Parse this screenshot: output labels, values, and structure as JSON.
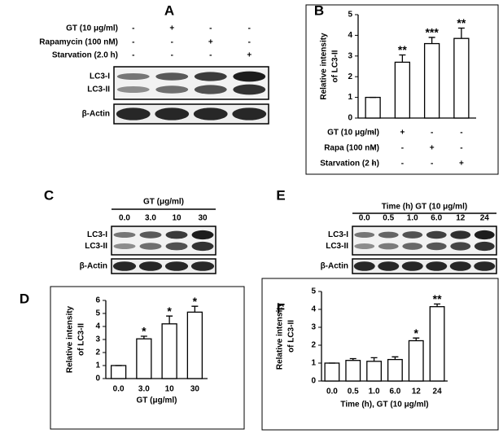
{
  "panels": {
    "A": {
      "letter": "A",
      "conditions": [
        {
          "label": "GT (10 μg/ml)",
          "signs": [
            "-",
            "+",
            "-",
            "-"
          ]
        },
        {
          "label": "Rapamycin (100 nM)",
          "signs": [
            "-",
            "-",
            "+",
            "-"
          ]
        },
        {
          "label": "Starvation (2.0 h)",
          "signs": [
            "-",
            "-",
            "-",
            "+"
          ]
        }
      ],
      "bands": [
        "LC3-I",
        "LC3-II"
      ],
      "loading": "β-Actin"
    },
    "C": {
      "letter": "C",
      "header": "GT (μg/ml)",
      "lanes": [
        "0.0",
        "3.0",
        "10",
        "30"
      ],
      "bands": [
        "LC3-I",
        "LC3-II"
      ],
      "loading": "β-Actin"
    },
    "E": {
      "letter": "E",
      "header": "Time (h) GT (10 μg/ml)",
      "lanes": [
        "0.0",
        "0.5",
        "1.0",
        "6.0",
        "12",
        "24"
      ],
      "bands": [
        "LC3-I",
        "LC3-II"
      ],
      "loading": "β-Actin"
    }
  },
  "chart_data": [
    {
      "type": "bar",
      "panel_letter": "B",
      "ylabel": [
        "Relative intensity",
        "of LC3-II"
      ],
      "categories": [
        null,
        null,
        null,
        null
      ],
      "values": [
        1,
        2.7,
        3.6,
        3.85
      ],
      "errors": [
        0,
        0.35,
        0.3,
        0.5
      ],
      "significance": [
        null,
        "**",
        "***",
        "**"
      ],
      "conditions": [
        {
          "label": "GT (10 μg/ml)",
          "signs": [
            "-",
            "+",
            "-",
            "-"
          ]
        },
        {
          "label": "Rapa (100 nM)",
          "signs": [
            "-",
            "-",
            "+",
            "-"
          ]
        },
        {
          "label": "Starvation (2 h)",
          "signs": [
            "-",
            "-",
            "-",
            "+"
          ]
        }
      ],
      "ylim": [
        0,
        5
      ],
      "yticks": [
        0,
        1,
        2,
        3,
        4,
        5
      ],
      "color": "#ffffff"
    },
    {
      "type": "bar",
      "panel_letter": "D",
      "ylabel": [
        "Relative intensity",
        "of LC3-II"
      ],
      "xlabel": "GT (μg/ml)",
      "categories": [
        "0.0",
        "3.0",
        "10",
        "30"
      ],
      "values": [
        1,
        3.05,
        4.2,
        5.1
      ],
      "errors": [
        0,
        0.2,
        0.6,
        0.45
      ],
      "significance": [
        null,
        "*",
        "*",
        "*"
      ],
      "ylim": [
        0,
        6
      ],
      "yticks": [
        0,
        1,
        2,
        3,
        4,
        5,
        6
      ],
      "color": "#ffffff"
    },
    {
      "type": "bar",
      "panel_letter": "F",
      "ylabel": [
        "Relative intensity",
        "of LC3-II"
      ],
      "xlabel": "Time (h), GT (10 μg/ml)",
      "categories": [
        "0.0",
        "0.5",
        "1.0",
        "6.0",
        "12",
        "24"
      ],
      "values": [
        1,
        1.15,
        1.1,
        1.2,
        2.25,
        4.15
      ],
      "errors": [
        0,
        0.1,
        0.2,
        0.15,
        0.15,
        0.15
      ],
      "significance": [
        null,
        null,
        null,
        null,
        "*",
        "**"
      ],
      "ylim": [
        0,
        5
      ],
      "yticks": [
        0,
        1,
        2,
        3,
        4,
        5
      ],
      "color": "#ffffff"
    }
  ]
}
